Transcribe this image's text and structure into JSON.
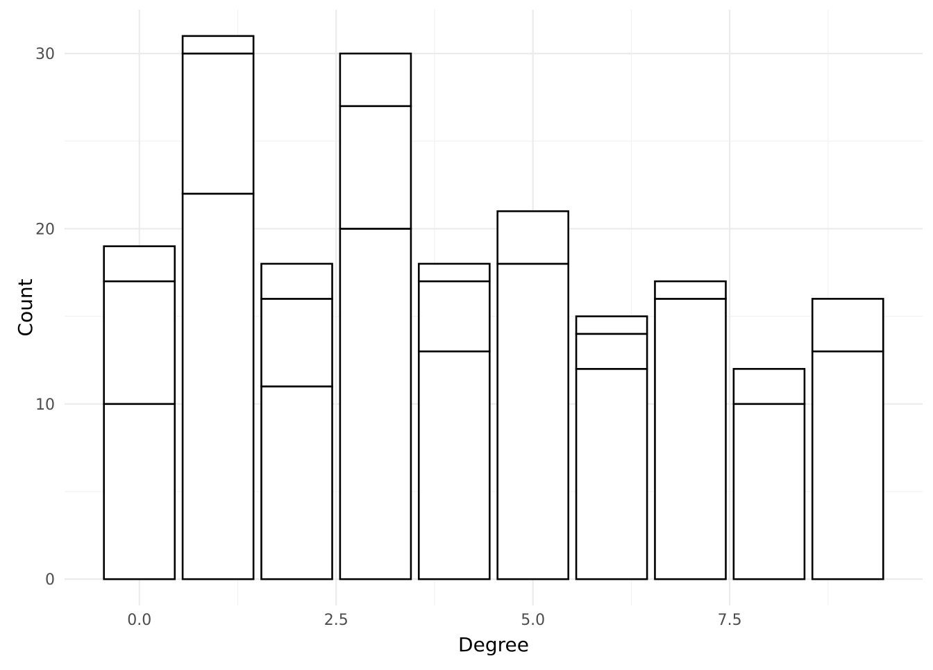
{
  "chart_data": {
    "type": "bar",
    "stacked": true,
    "x": [
      0,
      1,
      2,
      3,
      4,
      5,
      6,
      7,
      8,
      9
    ],
    "stacks": [
      [
        10,
        7,
        2
      ],
      [
        22,
        8,
        1
      ],
      [
        11,
        5,
        2
      ],
      [
        20,
        7,
        3
      ],
      [
        13,
        4,
        1
      ],
      [
        18,
        3
      ],
      [
        12,
        2,
        1
      ],
      [
        16,
        1
      ],
      [
        10,
        2
      ],
      [
        13,
        3
      ]
    ],
    "totals": [
      19,
      31,
      18,
      30,
      18,
      21,
      15,
      17,
      12,
      16
    ],
    "xlabel": "Degree",
    "ylabel": "Count",
    "xticks": [
      0,
      2.5,
      5,
      7.5
    ],
    "xtick_labels": [
      "0.0",
      "2.5",
      "5.0",
      "7.5"
    ],
    "yticks": [
      0,
      10,
      20,
      30
    ],
    "ytick_labels": [
      "0",
      "10",
      "20",
      "30"
    ],
    "xlim": [
      -0.95,
      9.95
    ],
    "ylim": [
      -1.5,
      32.5
    ],
    "grid": true,
    "bar_fill": "#ffffff",
    "bar_stroke": "#000000",
    "grid_color": "#ebebeb",
    "background": "#ffffff"
  }
}
